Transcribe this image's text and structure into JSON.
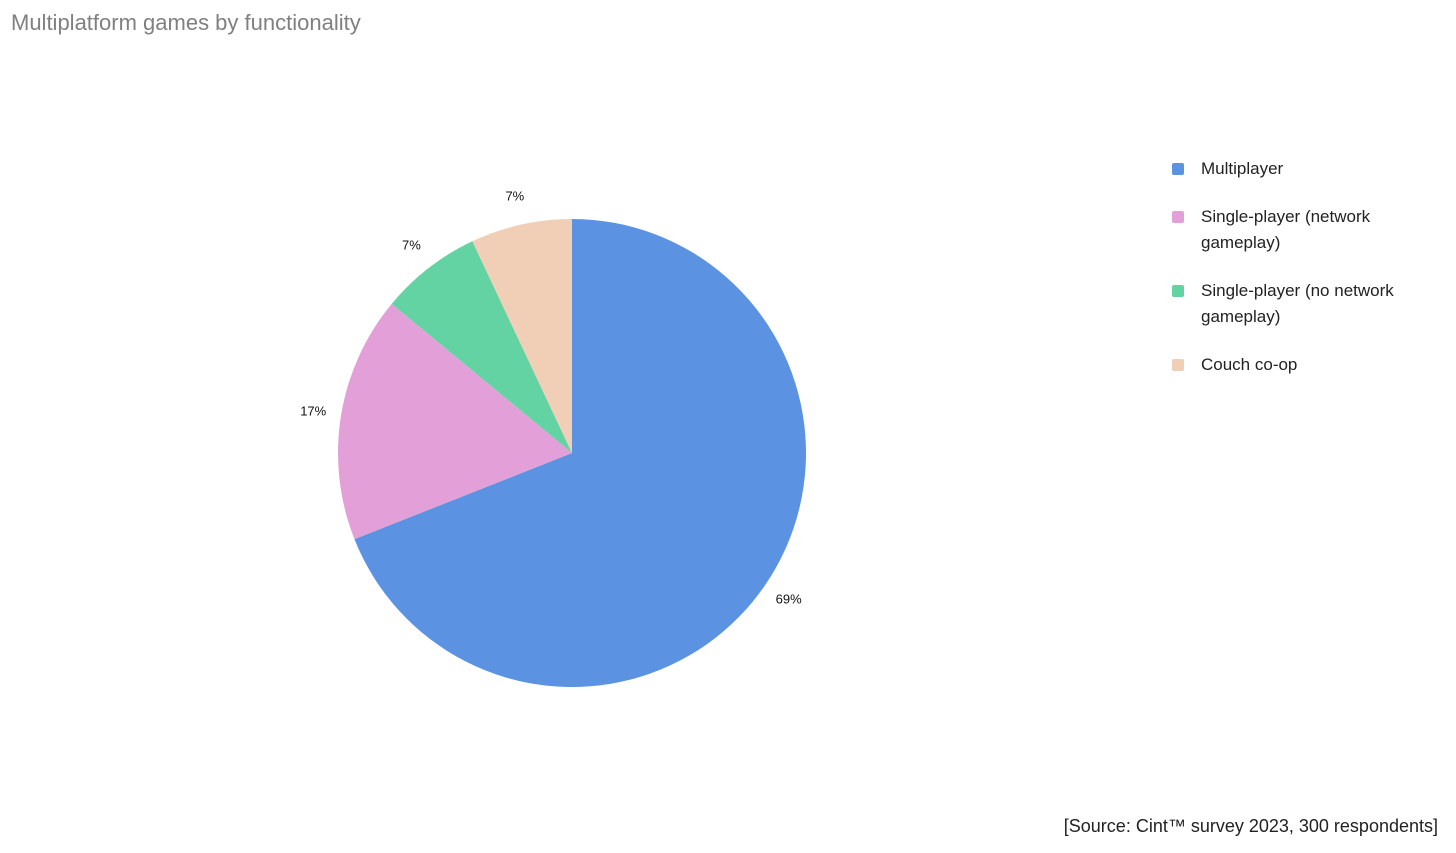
{
  "chart_data": {
    "type": "pie",
    "title": "Multiplatform games by functionality",
    "categories": [
      "Multiplayer",
      "Single-player (network gameplay)",
      "Single-player (no network gameplay)",
      "Couch co-op"
    ],
    "values": [
      69,
      17,
      7,
      7
    ],
    "value_labels": [
      "69%",
      "17%",
      "7%",
      "7%"
    ],
    "colors": [
      "#5b93e2",
      "#e3a0d8",
      "#64d3a4",
      "#f0cfb6"
    ],
    "legend": "right",
    "source": "[Source: Cint™ survey 2023, 300 respondents]"
  }
}
